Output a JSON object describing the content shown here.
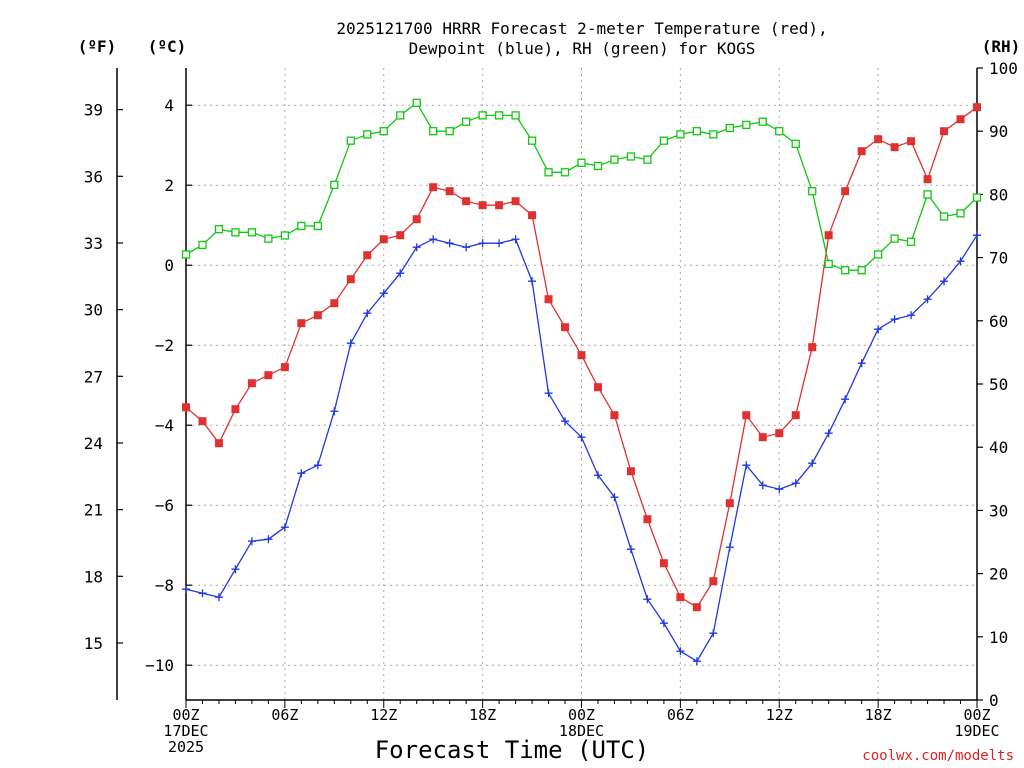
{
  "chart_data": {
    "type": "line",
    "title_line1": "2025121700 HRRR Forecast 2-meter Temperature (red),",
    "title_line2": "Dewpoint (blue), RH (green) for KOGS",
    "xlabel": "Forecast Time (UTC)",
    "credit": "coolwx.com/modelts",
    "units": {
      "fahrenheit": "(ºF)",
      "celsius": "(ºC)",
      "rh": "(RH)"
    },
    "x_hours": [
      0,
      1,
      2,
      3,
      4,
      5,
      6,
      7,
      8,
      9,
      10,
      11,
      12,
      13,
      14,
      15,
      16,
      17,
      18,
      19,
      20,
      21,
      22,
      23,
      24,
      25,
      26,
      27,
      28,
      29,
      30,
      31,
      32,
      33,
      34,
      35,
      36,
      37,
      38,
      39,
      40,
      41,
      42,
      43,
      44,
      45,
      46,
      47,
      48
    ],
    "xlim": [
      0,
      48
    ],
    "x_ticks": [
      {
        "hour": 0,
        "lines": [
          "00Z",
          "17DEC",
          "2025"
        ]
      },
      {
        "hour": 6,
        "lines": [
          "06Z"
        ]
      },
      {
        "hour": 12,
        "lines": [
          "12Z"
        ]
      },
      {
        "hour": 18,
        "lines": [
          "18Z"
        ]
      },
      {
        "hour": 24,
        "lines": [
          "00Z",
          "18DEC"
        ]
      },
      {
        "hour": 30,
        "lines": [
          "06Z"
        ]
      },
      {
        "hour": 36,
        "lines": [
          "12Z"
        ]
      },
      {
        "hour": 42,
        "lines": [
          "18Z"
        ]
      },
      {
        "hour": 48,
        "lines": [
          "00Z",
          "19DEC"
        ]
      }
    ],
    "ylim_c": [
      -10.87,
      4.93
    ],
    "yticks_c": [
      -10,
      -8,
      -6,
      -4,
      -2,
      0,
      2,
      4
    ],
    "yticks_c_labels": [
      "−10",
      "−8",
      "−6",
      "−4",
      "−2",
      "0",
      "2",
      "4"
    ],
    "yticks_f": [
      15,
      18,
      21,
      24,
      27,
      30,
      33,
      36,
      39
    ],
    "ylim_rh": [
      0,
      100
    ],
    "yticks_rh": [
      0,
      10,
      20,
      30,
      40,
      50,
      60,
      70,
      80,
      90,
      100
    ],
    "grid": true,
    "series": [
      {
        "name": "Temperature",
        "axis": "celsius",
        "color": "#e03131",
        "marker": "filled-square",
        "values": [
          -3.55,
          -3.9,
          -4.45,
          -3.6,
          -2.95,
          -2.75,
          -2.55,
          -1.45,
          -1.25,
          -0.95,
          -0.35,
          0.25,
          0.65,
          0.75,
          1.15,
          1.95,
          1.85,
          1.6,
          1.5,
          1.5,
          1.6,
          1.25,
          -0.85,
          -1.55,
          -2.25,
          -3.05,
          -3.75,
          -5.15,
          -6.35,
          -7.45,
          -8.3,
          -8.55,
          -7.9,
          -5.95,
          -3.75,
          -4.3,
          -4.2,
          -3.75,
          -2.05,
          0.75,
          1.85,
          2.85,
          3.15,
          2.95,
          3.1,
          2.15,
          3.35,
          3.65,
          3.95
        ]
      },
      {
        "name": "Dewpoint",
        "axis": "celsius",
        "color": "#2038e0",
        "marker": "plus",
        "values": [
          -8.1,
          -8.2,
          -8.3,
          -7.6,
          -6.9,
          -6.85,
          -6.55,
          -5.2,
          -5.0,
          -3.65,
          -1.95,
          -1.2,
          -0.7,
          -0.2,
          0.45,
          0.65,
          0.55,
          0.45,
          0.55,
          0.55,
          0.65,
          -0.4,
          -3.2,
          -3.9,
          -4.3,
          -5.25,
          -5.8,
          -7.1,
          -8.35,
          -8.95,
          -9.65,
          -9.9,
          -9.2,
          -7.05,
          -5.0,
          -5.5,
          -5.6,
          -5.45,
          -4.95,
          -4.2,
          -3.35,
          -2.45,
          -1.6,
          -1.35,
          -1.25,
          -0.85,
          -0.4,
          0.1,
          0.75
        ]
      },
      {
        "name": "RH",
        "axis": "rh",
        "color": "#10c810",
        "marker": "open-square",
        "values": [
          70.5,
          72.0,
          74.5,
          74.0,
          74.0,
          73.0,
          73.5,
          75.0,
          75.0,
          81.5,
          88.5,
          89.5,
          90.0,
          92.5,
          94.5,
          90.0,
          90.0,
          91.5,
          92.5,
          92.5,
          92.5,
          88.5,
          83.5,
          83.5,
          85.0,
          84.5,
          85.5,
          86.0,
          85.5,
          88.5,
          89.5,
          90.0,
          89.5,
          90.5,
          91.0,
          91.5,
          90.0,
          88.0,
          80.5,
          69.0,
          68.0,
          68.0,
          70.5,
          73.0,
          72.5,
          80.0,
          76.5,
          77.0,
          79.5
        ]
      }
    ]
  }
}
